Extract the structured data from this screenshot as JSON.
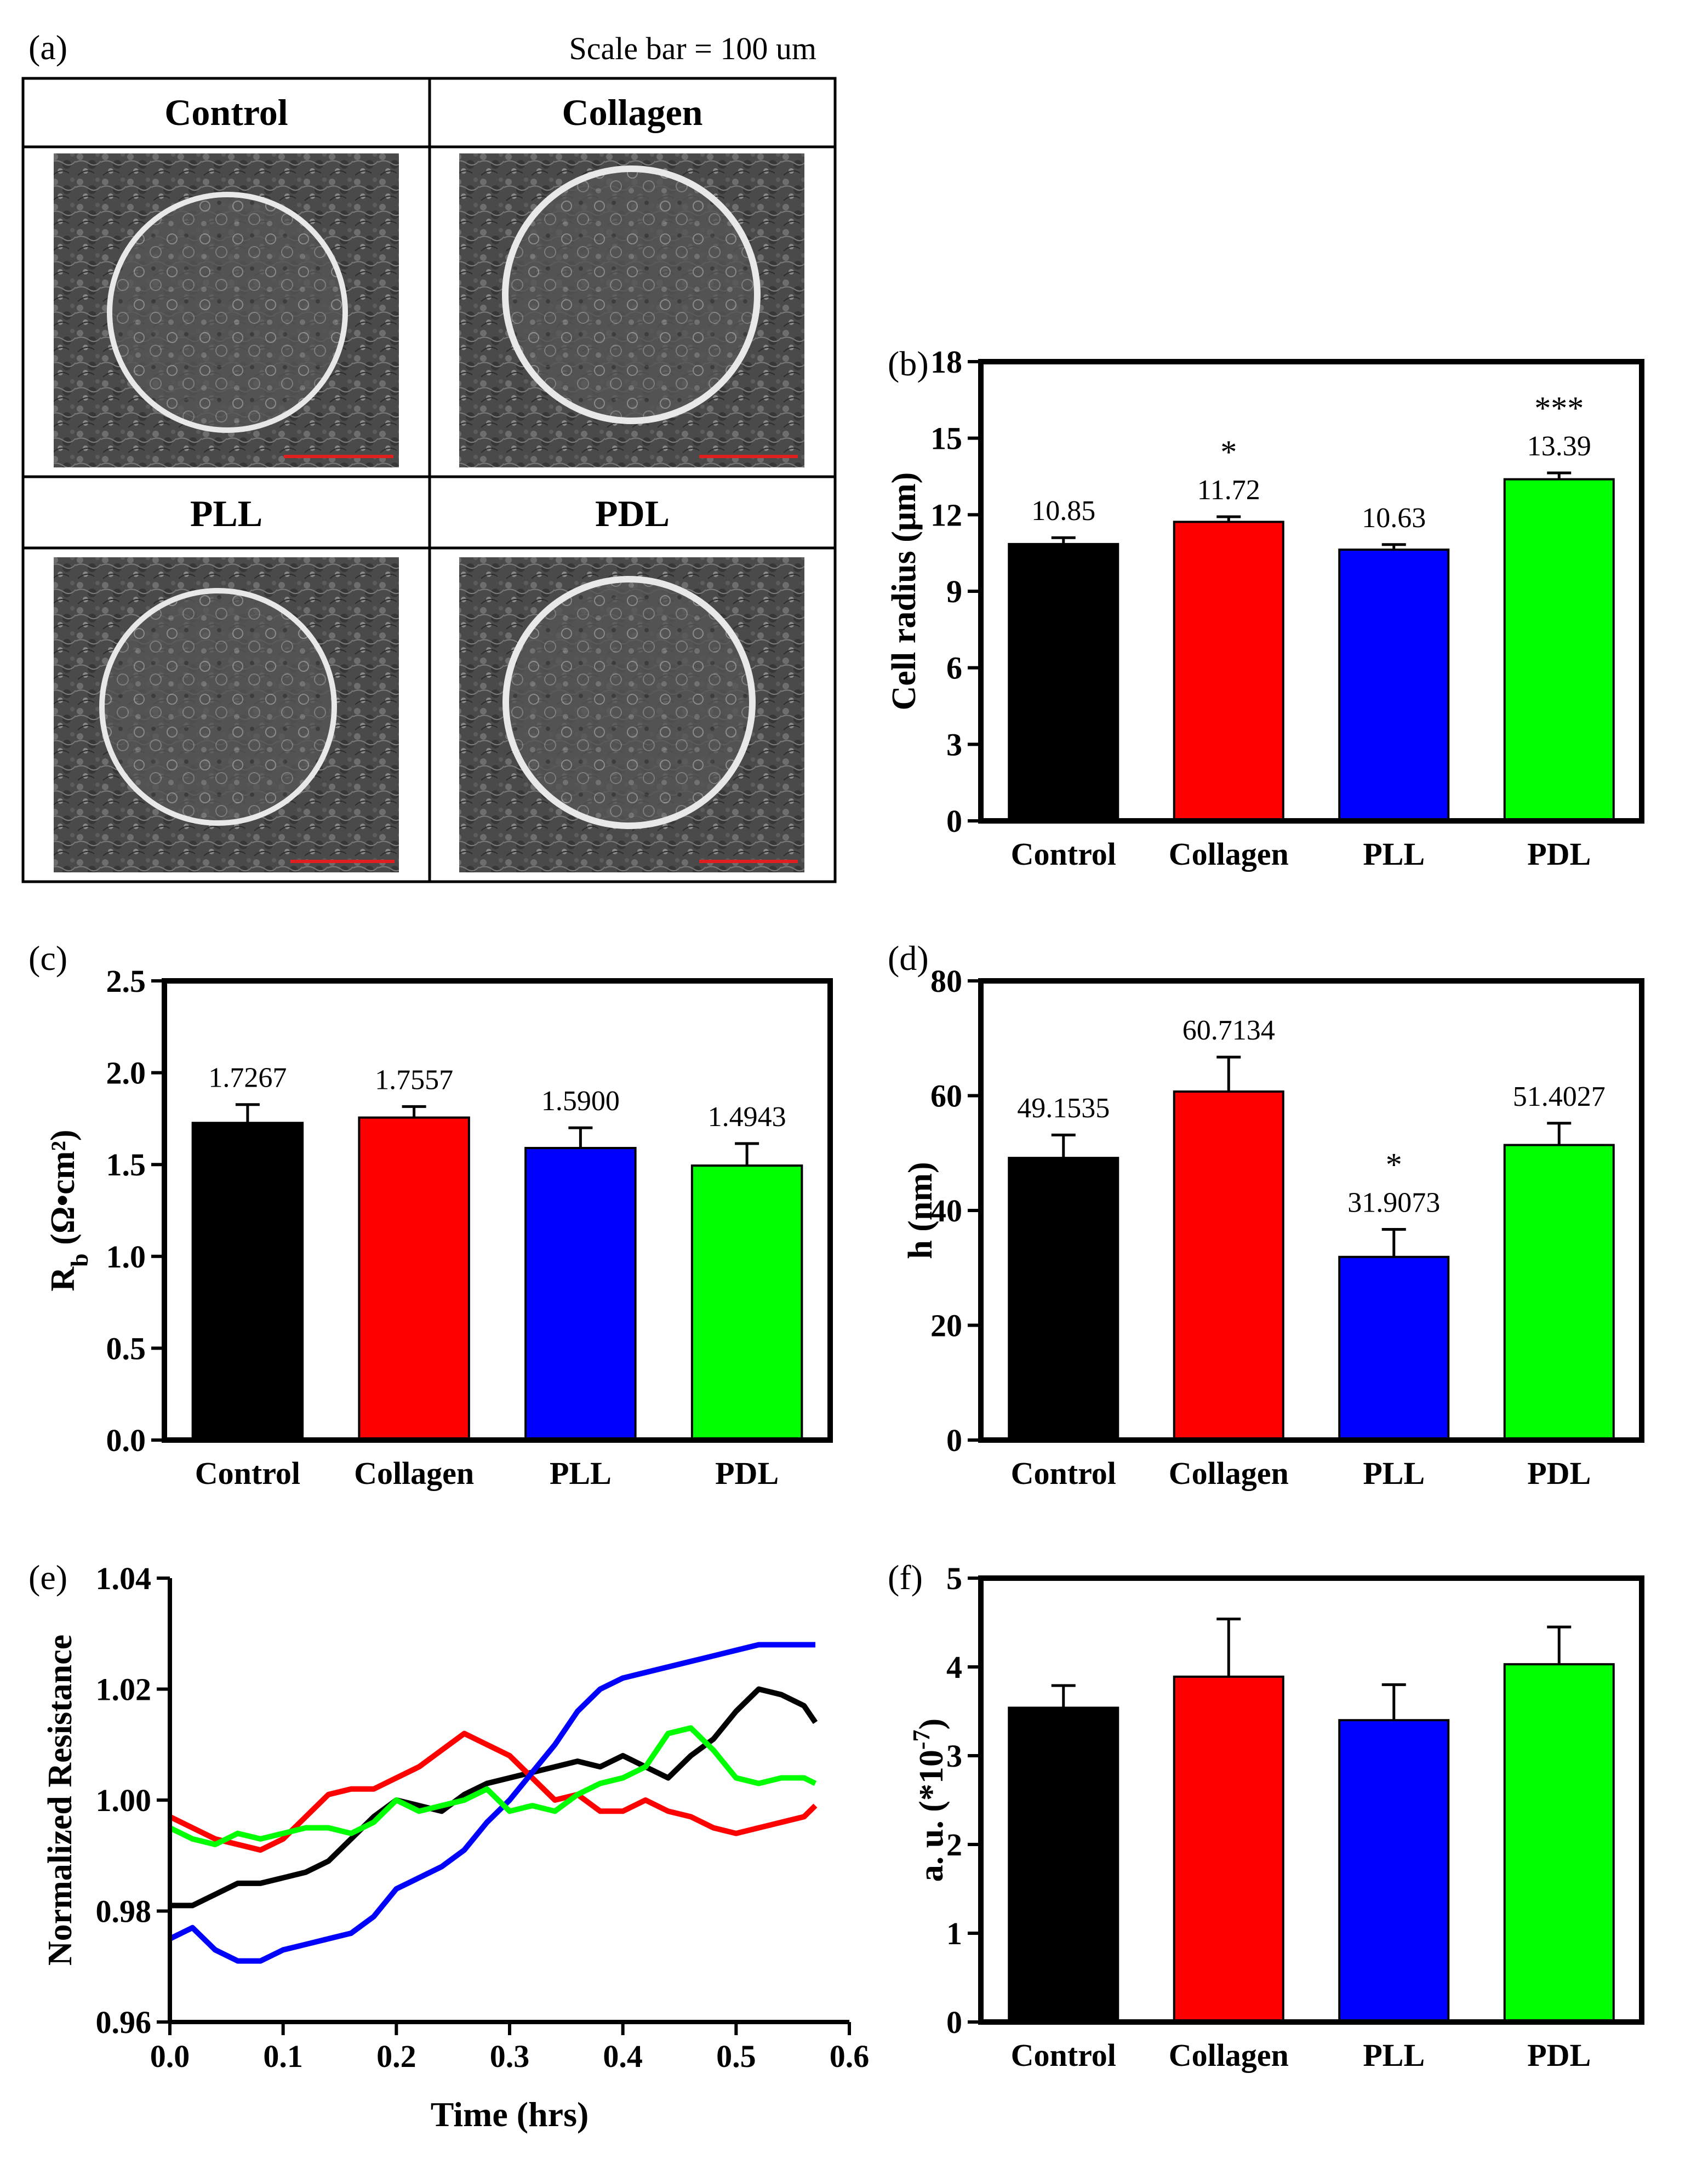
{
  "panel_a": {
    "label": "(a)",
    "scale_note": "Scale bar = 100 um",
    "cells": [
      {
        "name": "Control"
      },
      {
        "name": "Collagen"
      },
      {
        "name": "PLL"
      },
      {
        "name": "PDL"
      }
    ],
    "scale_bar_color": "#e0201e"
  },
  "colors": {
    "Control": "#000000",
    "Collagen": "#ff0000",
    "PLL": "#0000ff",
    "PDL": "#00ff00"
  },
  "chart_data": [
    {
      "id": "b",
      "type": "bar",
      "panel_label": "(b)",
      "categories": [
        "Control",
        "Collagen",
        "PLL",
        "PDL"
      ],
      "values": [
        10.85,
        11.72,
        10.63,
        13.39
      ],
      "errors": [
        0.25,
        0.2,
        0.2,
        0.25
      ],
      "value_labels": [
        "10.85",
        "11.72",
        "10.63",
        "13.39"
      ],
      "significance": [
        "",
        "*",
        "",
        "***"
      ],
      "ylabel": "Cell radius (μm)",
      "ylabel_sub": "",
      "ylabel_tail": "",
      "ylim": [
        0,
        18
      ],
      "yticks": [
        "0",
        "3",
        "6",
        "9",
        "12",
        "15",
        "18"
      ]
    },
    {
      "id": "c",
      "type": "bar",
      "panel_label": "(c)",
      "categories": [
        "Control",
        "Collagen",
        "PLL",
        "PDL"
      ],
      "values": [
        1.7267,
        1.7557,
        1.59,
        1.4943
      ],
      "errors": [
        0.1,
        0.06,
        0.11,
        0.12
      ],
      "value_labels": [
        "1.7267",
        "1.7557",
        "1.5900",
        "1.4943"
      ],
      "significance": [
        "",
        "",
        "",
        ""
      ],
      "ylabel": "R",
      "ylabel_sub": "b",
      "ylabel_tail": " (Ω•cm²)",
      "ylim": [
        0,
        2.5
      ],
      "yticks": [
        "0.0",
        "0.5",
        "1.0",
        "1.5",
        "2.0",
        "2.5"
      ]
    },
    {
      "id": "d",
      "type": "bar",
      "panel_label": "(d)",
      "categories": [
        "Control",
        "Collagen",
        "PLL",
        "PDL"
      ],
      "values": [
        49.1535,
        60.7134,
        31.9073,
        51.4027
      ],
      "errors": [
        4.0,
        6.0,
        4.8,
        3.8
      ],
      "value_labels": [
        "49.1535",
        "60.7134",
        "31.9073",
        "51.4027"
      ],
      "significance": [
        "",
        "",
        "*",
        ""
      ],
      "ylabel": "h (nm)",
      "ylabel_sub": "",
      "ylabel_tail": "",
      "ylim": [
        0,
        80
      ],
      "yticks": [
        "0",
        "20",
        "40",
        "60",
        "80"
      ]
    },
    {
      "id": "e",
      "type": "line",
      "panel_label": "(e)",
      "xlabel": "Time (hrs)",
      "ylabel": "Normalized Resistance",
      "xlim": [
        0,
        0.6
      ],
      "ylim": [
        0.96,
        1.04
      ],
      "xticks": [
        "0.0",
        "0.1",
        "0.2",
        "0.3",
        "0.4",
        "0.5",
        "0.6"
      ],
      "yticks": [
        "0.96",
        "0.98",
        "1.00",
        "1.02",
        "1.04"
      ],
      "x": [
        0.0,
        0.02,
        0.04,
        0.06,
        0.08,
        0.1,
        0.12,
        0.14,
        0.16,
        0.18,
        0.2,
        0.22,
        0.24,
        0.26,
        0.28,
        0.3,
        0.32,
        0.34,
        0.36,
        0.38,
        0.4,
        0.42,
        0.44,
        0.46,
        0.48,
        0.5,
        0.52,
        0.54,
        0.56,
        0.57
      ],
      "series": [
        {
          "name": "Control",
          "values": [
            0.981,
            0.981,
            0.983,
            0.985,
            0.985,
            0.986,
            0.987,
            0.989,
            0.993,
            0.997,
            1.0,
            0.999,
            0.998,
            1.001,
            1.003,
            1.004,
            1.005,
            1.006,
            1.007,
            1.006,
            1.008,
            1.006,
            1.004,
            1.008,
            1.011,
            1.016,
            1.02,
            1.019,
            1.017,
            1.014
          ]
        },
        {
          "name": "Collagen",
          "values": [
            0.997,
            0.995,
            0.993,
            0.992,
            0.991,
            0.993,
            0.997,
            1.001,
            1.002,
            1.002,
            1.004,
            1.006,
            1.009,
            1.012,
            1.01,
            1.008,
            1.004,
            1.0,
            1.001,
            0.998,
            0.998,
            1.0,
            0.998,
            0.997,
            0.995,
            0.994,
            0.995,
            0.996,
            0.997,
            0.999
          ]
        },
        {
          "name": "PLL",
          "values": [
            0.975,
            0.977,
            0.973,
            0.971,
            0.971,
            0.973,
            0.974,
            0.975,
            0.976,
            0.979,
            0.984,
            0.986,
            0.988,
            0.991,
            0.996,
            1.0,
            1.005,
            1.01,
            1.016,
            1.02,
            1.022,
            1.023,
            1.024,
            1.025,
            1.026,
            1.027,
            1.028,
            1.028,
            1.028,
            1.028
          ]
        },
        {
          "name": "PDL",
          "values": [
            0.995,
            0.993,
            0.992,
            0.994,
            0.993,
            0.994,
            0.995,
            0.995,
            0.994,
            0.996,
            1.0,
            0.998,
            0.999,
            1.0,
            1.002,
            0.998,
            0.999,
            0.998,
            1.001,
            1.003,
            1.004,
            1.006,
            1.012,
            1.013,
            1.009,
            1.004,
            1.003,
            1.004,
            1.004,
            1.003
          ]
        }
      ]
    },
    {
      "id": "f",
      "type": "bar",
      "panel_label": "(f)",
      "categories": [
        "Control",
        "Collagen",
        "PLL",
        "PDL"
      ],
      "values": [
        3.54,
        3.89,
        3.4,
        4.03
      ],
      "errors": [
        0.25,
        0.65,
        0.4,
        0.42
      ],
      "value_labels": [
        "",
        "",
        "",
        ""
      ],
      "significance": [
        "",
        "",
        "",
        ""
      ],
      "ylabel": "a. u. (*10",
      "ylabel_sub": "",
      "ylabel_sup": "-7",
      "ylabel_tail": ")",
      "ylim": [
        0,
        5
      ],
      "yticks": [
        "0",
        "1",
        "2",
        "3",
        "4",
        "5"
      ]
    }
  ]
}
